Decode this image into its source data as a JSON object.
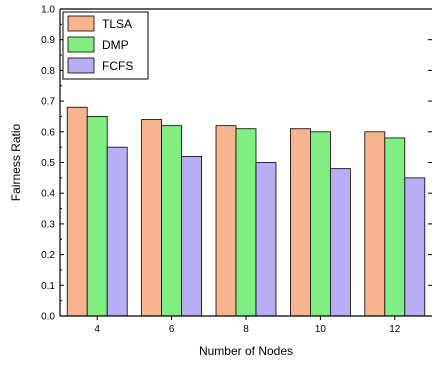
{
  "chart_data": {
    "type": "bar",
    "title": "",
    "xlabel": "Number of Nodes",
    "ylabel": "Fairness Ratio",
    "categories": [
      "4",
      "6",
      "8",
      "10",
      "12"
    ],
    "ylim": [
      0,
      1.0
    ],
    "yticks": [
      "0.0",
      "0.1",
      "0.2",
      "0.3",
      "0.4",
      "0.5",
      "0.6",
      "0.7",
      "0.8",
      "0.9",
      "1.0"
    ],
    "grid": false,
    "legend_position": "top-left",
    "series": [
      {
        "name": "TLSA",
        "color": "#f8b48f",
        "values": [
          0.68,
          0.64,
          0.62,
          0.61,
          0.6
        ]
      },
      {
        "name": "DMP",
        "color": "#80ee80",
        "values": [
          0.65,
          0.62,
          0.61,
          0.6,
          0.58
        ]
      },
      {
        "name": "FCFS",
        "color": "#b7aef5",
        "values": [
          0.55,
          0.52,
          0.5,
          0.48,
          0.45
        ]
      }
    ]
  }
}
